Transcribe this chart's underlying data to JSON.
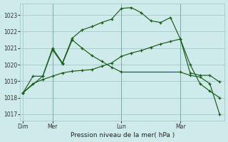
{
  "background_color": "#ceeaea",
  "grid_color": "#a8cece",
  "line_color": "#1a5c1a",
  "title": "Pression niveau de la mer( hPa )",
  "xlabel_ticks": [
    "Dim",
    "Mer",
    "Lun",
    "Mar"
  ],
  "xlabel_tick_positions": [
    0,
    3,
    10,
    16
  ],
  "ymin": 1016.6,
  "ymax": 1023.7,
  "yticks": [
    1017,
    1018,
    1019,
    1020,
    1021,
    1022,
    1023
  ],
  "line_main_x": [
    0,
    1,
    2,
    3,
    4,
    5,
    6,
    7,
    8,
    9,
    10,
    11,
    12,
    13,
    14,
    15,
    16,
    17,
    18,
    19,
    20
  ],
  "line_main_y": [
    1018.3,
    1019.3,
    1019.3,
    1021.0,
    1020.1,
    1021.6,
    1022.1,
    1022.3,
    1022.55,
    1022.75,
    1023.4,
    1023.45,
    1023.15,
    1022.65,
    1022.55,
    1022.85,
    1021.55,
    1019.5,
    1019.35,
    1019.35,
    1018.95
  ],
  "line_flat_x": [
    0,
    1,
    2,
    3,
    4,
    5,
    6,
    7,
    8,
    9,
    10,
    11,
    12,
    13,
    14,
    15,
    16,
    17,
    18,
    19,
    20
  ],
  "line_flat_y": [
    1018.3,
    1018.85,
    1019.1,
    1019.3,
    1019.5,
    1019.6,
    1019.65,
    1019.7,
    1019.9,
    1020.1,
    1020.5,
    1020.7,
    1020.85,
    1021.05,
    1021.25,
    1021.4,
    1021.55,
    1020.0,
    1018.85,
    1018.4,
    1018.0
  ],
  "line_drop_x": [
    0,
    2,
    3,
    4,
    5,
    6,
    7,
    8,
    9,
    10,
    16,
    17,
    18,
    19,
    20
  ],
  "line_drop_y": [
    1018.3,
    1019.3,
    1020.9,
    1020.05,
    1021.5,
    1021.0,
    1020.55,
    1020.2,
    1019.85,
    1019.55,
    1019.55,
    1019.35,
    1019.25,
    1018.85,
    1017.0
  ],
  "vline_positions": [
    3,
    10,
    16
  ]
}
